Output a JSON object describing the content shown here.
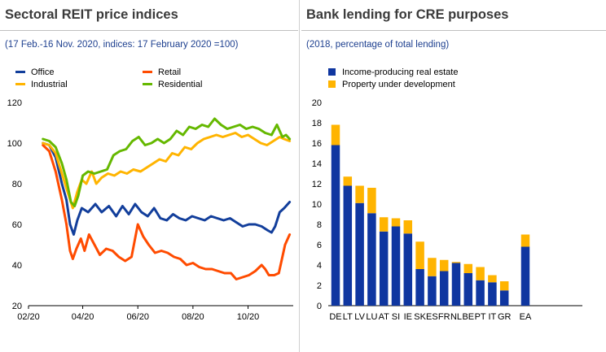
{
  "left_panel": {
    "title": "Sectoral REIT price indices",
    "subtitle": "(17 Feb.-16 Nov. 2020, indices: 17 February 2020 =100)"
  },
  "right_panel": {
    "title": "Bank lending for CRE purposes",
    "subtitle": "(2018, percentage of total lending)"
  },
  "chart_data": [
    {
      "type": "line",
      "title": "Sectoral REIT price indices",
      "subtitle": "(17 Feb.-16 Nov. 2020, indices: 17 February 2020 =100)",
      "x_tick_labels": [
        "02/20",
        "04/20",
        "06/20",
        "08/20",
        "10/20"
      ],
      "x_ticks": [
        "2020-02-01",
        "2020-04-01",
        "2020-06-01",
        "2020-08-01",
        "2020-10-01"
      ],
      "xlim": [
        "2020-02-01",
        "2020-11-20"
      ],
      "ylim": [
        20,
        120
      ],
      "y_ticks": [
        20,
        40,
        60,
        80,
        100,
        120
      ],
      "grid": false,
      "legend_position": "top",
      "series": [
        {
          "name": "Office",
          "color": "#123e9b",
          "points": [
            [
              "2020-02-17",
              100
            ],
            [
              "2020-02-24",
              99
            ],
            [
              "2020-03-02",
              93
            ],
            [
              "2020-03-09",
              80
            ],
            [
              "2020-03-14",
              72
            ],
            [
              "2020-03-18",
              60
            ],
            [
              "2020-03-22",
              55
            ],
            [
              "2020-03-26",
              62
            ],
            [
              "2020-03-31",
              68
            ],
            [
              "2020-04-07",
              66
            ],
            [
              "2020-04-15",
              70
            ],
            [
              "2020-04-22",
              66
            ],
            [
              "2020-04-30",
              69
            ],
            [
              "2020-05-08",
              64
            ],
            [
              "2020-05-15",
              69
            ],
            [
              "2020-05-22",
              65
            ],
            [
              "2020-05-29",
              70
            ],
            [
              "2020-06-05",
              66
            ],
            [
              "2020-06-12",
              64
            ],
            [
              "2020-06-19",
              68
            ],
            [
              "2020-06-26",
              63
            ],
            [
              "2020-07-03",
              62
            ],
            [
              "2020-07-10",
              65
            ],
            [
              "2020-07-17",
              63
            ],
            [
              "2020-07-24",
              62
            ],
            [
              "2020-07-31",
              64
            ],
            [
              "2020-08-07",
              63
            ],
            [
              "2020-08-14",
              62
            ],
            [
              "2020-08-21",
              64
            ],
            [
              "2020-08-28",
              63
            ],
            [
              "2020-09-04",
              62
            ],
            [
              "2020-09-11",
              63
            ],
            [
              "2020-09-18",
              61
            ],
            [
              "2020-09-25",
              59
            ],
            [
              "2020-10-02",
              60
            ],
            [
              "2020-10-09",
              60
            ],
            [
              "2020-10-16",
              59
            ],
            [
              "2020-10-23",
              57
            ],
            [
              "2020-10-27",
              56
            ],
            [
              "2020-10-31",
              59
            ],
            [
              "2020-11-05",
              66
            ],
            [
              "2020-11-10",
              68
            ],
            [
              "2020-11-16",
              71
            ]
          ]
        },
        {
          "name": "Retail",
          "color": "#ff4b00",
          "points": [
            [
              "2020-02-17",
              99
            ],
            [
              "2020-02-24",
              96
            ],
            [
              "2020-03-02",
              86
            ],
            [
              "2020-03-09",
              72
            ],
            [
              "2020-03-14",
              60
            ],
            [
              "2020-03-18",
              47
            ],
            [
              "2020-03-21",
              43
            ],
            [
              "2020-03-25",
              48
            ],
            [
              "2020-03-30",
              53
            ],
            [
              "2020-04-03",
              47
            ],
            [
              "2020-04-08",
              55
            ],
            [
              "2020-04-14",
              50
            ],
            [
              "2020-04-20",
              45
            ],
            [
              "2020-04-27",
              48
            ],
            [
              "2020-05-04",
              47
            ],
            [
              "2020-05-11",
              44
            ],
            [
              "2020-05-18",
              42
            ],
            [
              "2020-05-25",
              44
            ],
            [
              "2020-06-01",
              60
            ],
            [
              "2020-06-07",
              54
            ],
            [
              "2020-06-13",
              50
            ],
            [
              "2020-06-20",
              46
            ],
            [
              "2020-06-27",
              47
            ],
            [
              "2020-07-04",
              46
            ],
            [
              "2020-07-11",
              44
            ],
            [
              "2020-07-18",
              43
            ],
            [
              "2020-07-25",
              40
            ],
            [
              "2020-08-01",
              41
            ],
            [
              "2020-08-08",
              39
            ],
            [
              "2020-08-15",
              38
            ],
            [
              "2020-08-22",
              38
            ],
            [
              "2020-08-29",
              37
            ],
            [
              "2020-09-05",
              36
            ],
            [
              "2020-09-12",
              36
            ],
            [
              "2020-09-18",
              33
            ],
            [
              "2020-09-25",
              34
            ],
            [
              "2020-10-02",
              35
            ],
            [
              "2020-10-09",
              37
            ],
            [
              "2020-10-16",
              40
            ],
            [
              "2020-10-20",
              38
            ],
            [
              "2020-10-24",
              35
            ],
            [
              "2020-10-30",
              35
            ],
            [
              "2020-11-04",
              36
            ],
            [
              "2020-11-08",
              44
            ],
            [
              "2020-11-11",
              50
            ],
            [
              "2020-11-16",
              55
            ]
          ]
        },
        {
          "name": "Industrial",
          "color": "#ffb400",
          "points": [
            [
              "2020-02-17",
              100
            ],
            [
              "2020-02-24",
              99
            ],
            [
              "2020-03-02",
              95
            ],
            [
              "2020-03-09",
              85
            ],
            [
              "2020-03-16",
              75
            ],
            [
              "2020-03-21",
              68
            ],
            [
              "2020-03-26",
              76
            ],
            [
              "2020-03-31",
              82
            ],
            [
              "2020-04-05",
              80
            ],
            [
              "2020-04-11",
              86
            ],
            [
              "2020-04-16",
              80
            ],
            [
              "2020-04-22",
              83
            ],
            [
              "2020-04-29",
              85
            ],
            [
              "2020-05-06",
              84
            ],
            [
              "2020-05-13",
              86
            ],
            [
              "2020-05-20",
              85
            ],
            [
              "2020-05-27",
              87
            ],
            [
              "2020-06-04",
              86
            ],
            [
              "2020-06-11",
              88
            ],
            [
              "2020-06-18",
              90
            ],
            [
              "2020-06-25",
              92
            ],
            [
              "2020-07-02",
              91
            ],
            [
              "2020-07-09",
              95
            ],
            [
              "2020-07-16",
              94
            ],
            [
              "2020-07-23",
              98
            ],
            [
              "2020-07-30",
              97
            ],
            [
              "2020-08-06",
              100
            ],
            [
              "2020-08-13",
              102
            ],
            [
              "2020-08-20",
              103
            ],
            [
              "2020-08-27",
              104
            ],
            [
              "2020-09-03",
              103
            ],
            [
              "2020-09-10",
              104
            ],
            [
              "2020-09-17",
              105
            ],
            [
              "2020-09-24",
              103
            ],
            [
              "2020-10-01",
              104
            ],
            [
              "2020-10-08",
              102
            ],
            [
              "2020-10-15",
              100
            ],
            [
              "2020-10-22",
              99
            ],
            [
              "2020-10-29",
              101
            ],
            [
              "2020-11-05",
              103
            ],
            [
              "2020-11-10",
              102
            ],
            [
              "2020-11-16",
              101
            ]
          ]
        },
        {
          "name": "Residential",
          "color": "#65b800",
          "points": [
            [
              "2020-02-17",
              102
            ],
            [
              "2020-02-24",
              101
            ],
            [
              "2020-03-02",
              98
            ],
            [
              "2020-03-09",
              90
            ],
            [
              "2020-03-14",
              82
            ],
            [
              "2020-03-19",
              71
            ],
            [
              "2020-03-23",
              69
            ],
            [
              "2020-03-27",
              74
            ],
            [
              "2020-04-01",
              84
            ],
            [
              "2020-04-07",
              86
            ],
            [
              "2020-04-14",
              85
            ],
            [
              "2020-04-21",
              86
            ],
            [
              "2020-04-28",
              87
            ],
            [
              "2020-05-05",
              94
            ],
            [
              "2020-05-12",
              96
            ],
            [
              "2020-05-19",
              97
            ],
            [
              "2020-05-26",
              101
            ],
            [
              "2020-06-02",
              103
            ],
            [
              "2020-06-09",
              99
            ],
            [
              "2020-06-16",
              100
            ],
            [
              "2020-06-23",
              102
            ],
            [
              "2020-06-30",
              100
            ],
            [
              "2020-07-07",
              102
            ],
            [
              "2020-07-14",
              106
            ],
            [
              "2020-07-21",
              104
            ],
            [
              "2020-07-28",
              108
            ],
            [
              "2020-08-04",
              107
            ],
            [
              "2020-08-11",
              109
            ],
            [
              "2020-08-18",
              108
            ],
            [
              "2020-08-25",
              112
            ],
            [
              "2020-09-01",
              109
            ],
            [
              "2020-09-08",
              107
            ],
            [
              "2020-09-15",
              108
            ],
            [
              "2020-09-22",
              109
            ],
            [
              "2020-09-29",
              107
            ],
            [
              "2020-10-06",
              108
            ],
            [
              "2020-10-13",
              107
            ],
            [
              "2020-10-20",
              105
            ],
            [
              "2020-10-27",
              104
            ],
            [
              "2020-11-02",
              109
            ],
            [
              "2020-11-08",
              103
            ],
            [
              "2020-11-12",
              104
            ],
            [
              "2020-11-16",
              102
            ]
          ]
        }
      ]
    },
    {
      "type": "bar",
      "stacked": true,
      "title": "Bank lending for CRE purposes",
      "subtitle": "(2018, percentage of total lending)",
      "categories": [
        "DE",
        "LT",
        "LV",
        "LU",
        "AT",
        "SI",
        "IE",
        "SK",
        "ES",
        "FR",
        "NL",
        "BE",
        "PT",
        "IT",
        "GR",
        "EA"
      ],
      "ylim": [
        0,
        20
      ],
      "y_ticks": [
        0,
        2,
        4,
        6,
        8,
        10,
        12,
        14,
        16,
        18,
        20
      ],
      "grid": false,
      "legend_position": "top",
      "series": [
        {
          "name": "Income-producing  real estate",
          "color": "#0f36a0",
          "values": [
            15.8,
            11.8,
            10.1,
            9.1,
            7.3,
            7.8,
            7.1,
            3.6,
            2.9,
            3.4,
            4.2,
            3.2,
            2.5,
            2.3,
            1.5,
            5.8
          ]
        },
        {
          "name": "Property under development",
          "color": "#ffb400",
          "values": [
            2.0,
            0.9,
            1.7,
            2.5,
            1.4,
            0.8,
            1.3,
            2.7,
            1.8,
            1.1,
            0.1,
            0.9,
            1.3,
            0.7,
            0.9,
            1.2
          ]
        }
      ]
    }
  ]
}
